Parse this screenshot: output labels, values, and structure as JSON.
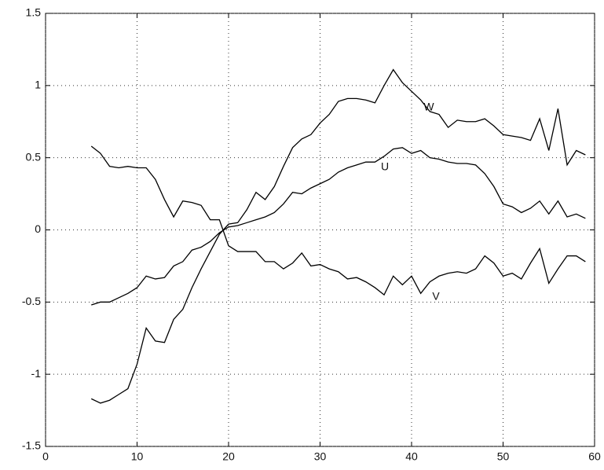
{
  "chart_data": {
    "type": "line",
    "x": [
      5,
      6,
      7,
      8,
      9,
      10,
      11,
      12,
      13,
      14,
      15,
      16,
      17,
      18,
      19,
      20,
      21,
      22,
      23,
      24,
      25,
      26,
      27,
      28,
      29,
      30,
      31,
      32,
      33,
      34,
      35,
      36,
      37,
      38,
      39,
      40,
      41,
      42,
      43,
      44,
      45,
      46,
      47,
      48,
      49,
      50,
      51,
      52,
      53,
      54,
      55,
      56,
      57,
      58,
      59
    ],
    "series": [
      {
        "name": "W",
        "color": "#000000",
        "values": [
          -1.17,
          -1.2,
          -1.18,
          -1.14,
          -1.1,
          -0.93,
          -0.68,
          -0.77,
          -0.78,
          -0.62,
          -0.55,
          -0.4,
          -0.27,
          -0.15,
          -0.03,
          0.04,
          0.05,
          0.14,
          0.26,
          0.21,
          0.3,
          0.44,
          0.57,
          0.63,
          0.66,
          0.74,
          0.8,
          0.89,
          0.91,
          0.91,
          0.9,
          0.88,
          1.0,
          1.11,
          1.02,
          0.96,
          0.9,
          0.82,
          0.8,
          0.71,
          0.76,
          0.75,
          0.75,
          0.77,
          0.72,
          0.66,
          0.65,
          0.64,
          0.62,
          0.77,
          0.55,
          0.84,
          0.45,
          0.55,
          0.52
        ]
      },
      {
        "name": "U",
        "color": "#000000",
        "values": [
          -0.52,
          -0.5,
          -0.5,
          -0.47,
          -0.44,
          -0.4,
          -0.32,
          -0.34,
          -0.33,
          -0.25,
          -0.22,
          -0.14,
          -0.12,
          -0.08,
          -0.02,
          0.02,
          0.03,
          0.05,
          0.07,
          0.09,
          0.12,
          0.18,
          0.26,
          0.25,
          0.29,
          0.32,
          0.35,
          0.4,
          0.43,
          0.45,
          0.47,
          0.47,
          0.51,
          0.56,
          0.57,
          0.53,
          0.55,
          0.5,
          0.49,
          0.47,
          0.46,
          0.46,
          0.45,
          0.39,
          0.3,
          0.18,
          0.16,
          0.12,
          0.15,
          0.2,
          0.11,
          0.2,
          0.09,
          0.11,
          0.08
        ]
      },
      {
        "name": "V",
        "color": "#000000",
        "values": [
          0.58,
          0.53,
          0.44,
          0.43,
          0.44,
          0.43,
          0.43,
          0.35,
          0.21,
          0.09,
          0.2,
          0.19,
          0.17,
          0.07,
          0.07,
          -0.11,
          -0.15,
          -0.15,
          -0.15,
          -0.22,
          -0.22,
          -0.27,
          -0.23,
          -0.16,
          -0.25,
          -0.24,
          -0.27,
          -0.29,
          -0.34,
          -0.33,
          -0.36,
          -0.4,
          -0.45,
          -0.32,
          -0.38,
          -0.32,
          -0.44,
          -0.36,
          -0.32,
          -0.3,
          -0.29,
          -0.3,
          -0.27,
          -0.18,
          -0.23,
          -0.32,
          -0.3,
          -0.34,
          -0.23,
          -0.13,
          -0.37,
          -0.27,
          -0.18,
          -0.18,
          -0.22
        ]
      }
    ],
    "xlim": [
      0,
      60
    ],
    "xticks": [
      0,
      10,
      20,
      30,
      40,
      50,
      60
    ],
    "ylim": [
      -1.5,
      1.5
    ],
    "yticks": [
      -1.5,
      -1,
      -0.5,
      0,
      0.5,
      1,
      1.5
    ],
    "grid": true
  }
}
